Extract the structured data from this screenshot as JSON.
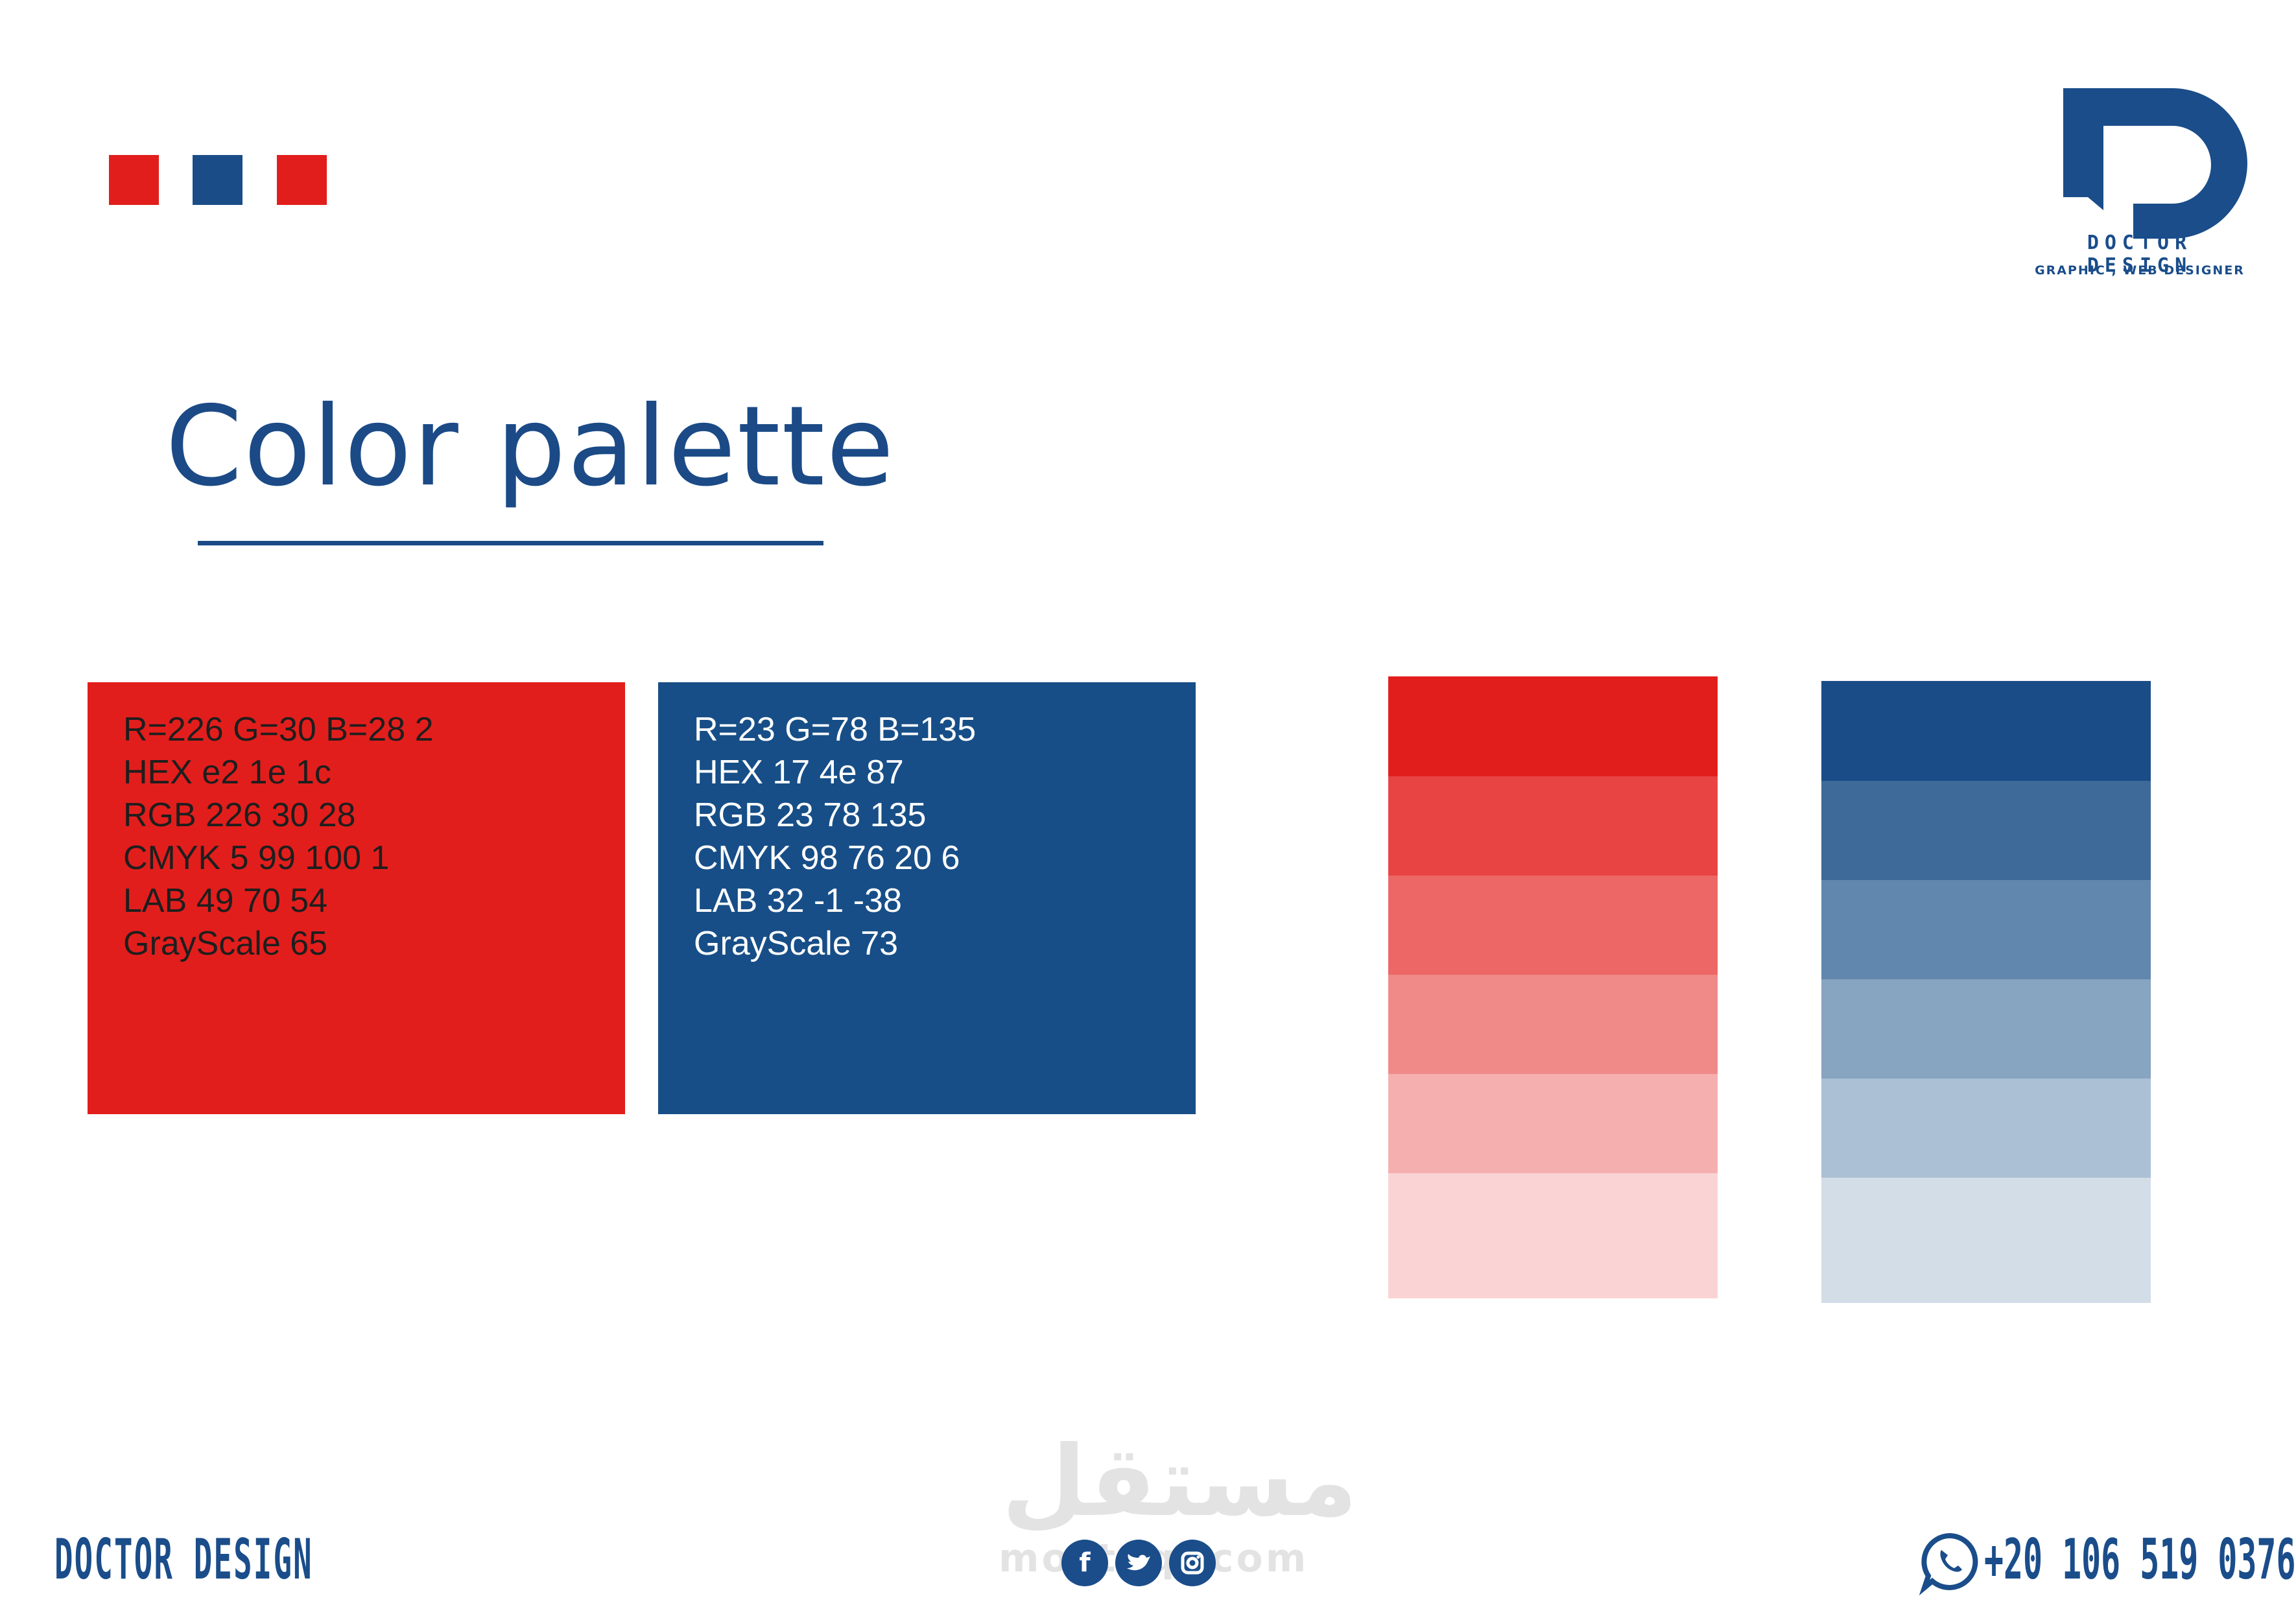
{
  "colors": {
    "primary_red": "#e21e1c",
    "primary_blue": "#174e87",
    "text_blue": "#1b4a86",
    "red_shades": [
      "#e21e1c",
      "#e74443",
      "#ec6766",
      "#f08a89",
      "#f5afaf",
      "#fad4d4"
    ],
    "blue_shades": [
      "#1a4d87",
      "#3d6a98",
      "#6287ae",
      "#87a4c1",
      "#abc0d5",
      "#d3dde8"
    ]
  },
  "header": {
    "squares": [
      "#e21e1c",
      "#1a4d87",
      "#e21e1c"
    ]
  },
  "logo": {
    "name": "DOCTOR DESIGN",
    "subtitle": "GRAPHIC , WEB DESIGNER"
  },
  "title": "Color palette",
  "cards": [
    {
      "color": "#e21e1c",
      "text_color": "#1e1e1e",
      "lines": [
        "R=226 G=30 B=28 2",
        "HEX e2 1e 1c",
        "RGB 226 30 28",
        "CMYK 5 99 100 1",
        "LAB 49 70 54",
        "GrayScale 65"
      ]
    },
    {
      "color": "#174e87",
      "text_color": "#ffffff",
      "lines": [
        "R=23 G=78 B=135",
        "HEX 17 4e 87",
        "RGB 23 78 135",
        "CMYK 98 76 20 6",
        "LAB 32 -1 -38",
        "GrayScale 73"
      ]
    }
  ],
  "footer": {
    "brand": "DOCTOR DESIGN",
    "watermark_arabic": "مستقل",
    "watermark_latin": "mostaql.com",
    "social": [
      "facebook-icon",
      "twitter-icon",
      "instagram-icon"
    ],
    "phone": "+20 106 519 0376"
  }
}
